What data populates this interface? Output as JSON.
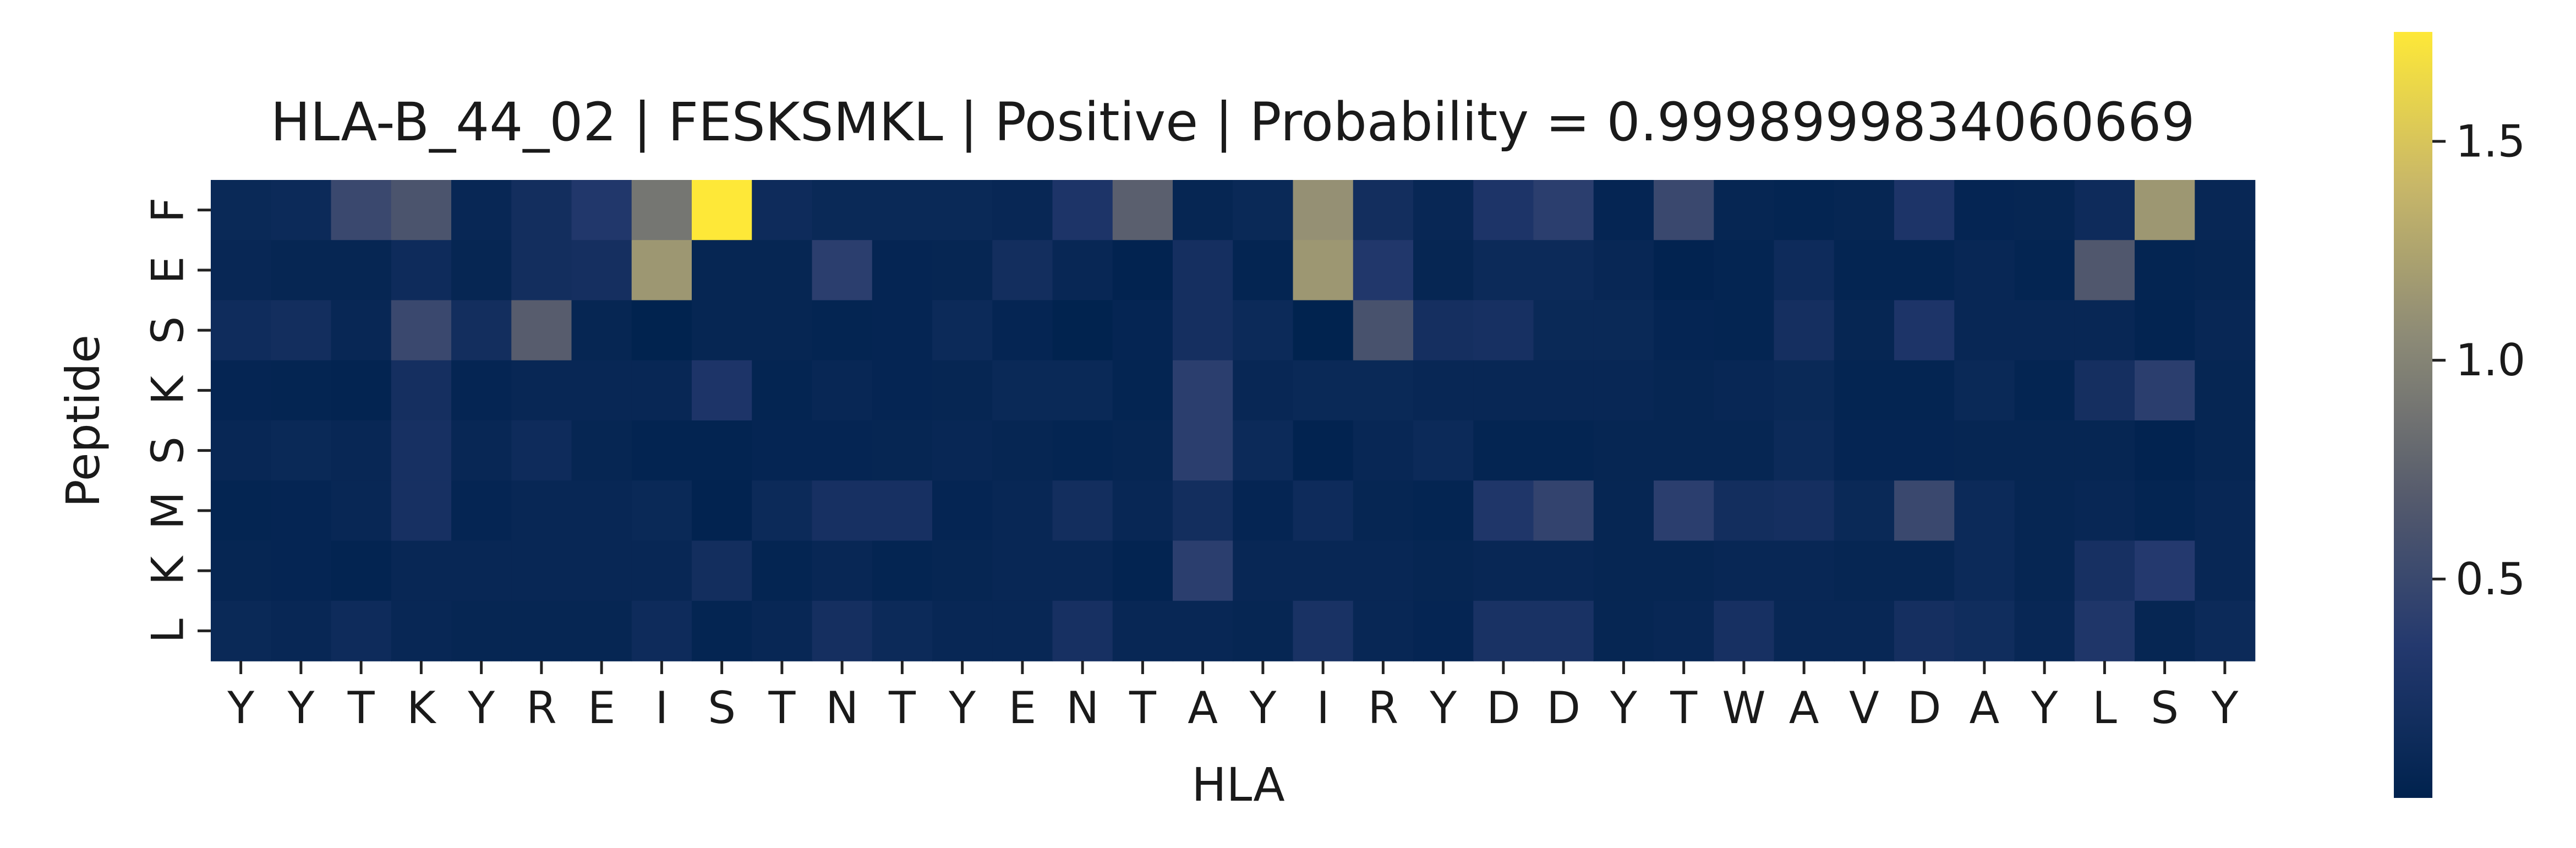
{
  "chart_data": {
    "type": "heatmap",
    "title": "HLA-B_44_02 | FESKSMKL | Positive | Probability = 0.9998999834060669",
    "xlabel": "HLA",
    "ylabel": "Peptide",
    "x_labels": [
      "Y",
      "Y",
      "T",
      "K",
      "Y",
      "R",
      "E",
      "I",
      "S",
      "T",
      "N",
      "T",
      "Y",
      "E",
      "N",
      "T",
      "A",
      "Y",
      "I",
      "R",
      "Y",
      "D",
      "D",
      "Y",
      "T",
      "W",
      "A",
      "V",
      "D",
      "A",
      "Y",
      "L",
      "S",
      "Y"
    ],
    "y_labels": [
      "F",
      "E",
      "S",
      "K",
      "S",
      "M",
      "K",
      "L"
    ],
    "colormap": "cividis",
    "value_range": [
      0.0,
      1.75
    ],
    "colorbar_ticks": [
      0.5,
      1.0,
      1.5
    ],
    "colorbar_tick_labels": [
      "0.5",
      "1.0",
      "1.5"
    ],
    "values": [
      [
        0.1,
        0.12,
        0.5,
        0.62,
        0.08,
        0.18,
        0.32,
        0.9,
        1.75,
        0.14,
        0.1,
        0.1,
        0.1,
        0.08,
        0.28,
        0.72,
        0.06,
        0.1,
        1.1,
        0.18,
        0.08,
        0.28,
        0.4,
        0.05,
        0.5,
        0.06,
        0.04,
        0.06,
        0.28,
        0.05,
        0.06,
        0.14,
        1.15,
        0.08
      ],
      [
        0.08,
        0.06,
        0.06,
        0.14,
        0.06,
        0.18,
        0.2,
        1.15,
        0.06,
        0.06,
        0.4,
        0.05,
        0.06,
        0.18,
        0.08,
        0.02,
        0.2,
        0.04,
        1.15,
        0.32,
        0.06,
        0.12,
        0.12,
        0.08,
        0.02,
        0.04,
        0.14,
        0.04,
        0.04,
        0.08,
        0.04,
        0.65,
        0.04,
        0.06
      ],
      [
        0.15,
        0.18,
        0.08,
        0.5,
        0.18,
        0.7,
        0.06,
        0.01,
        0.06,
        0.06,
        0.04,
        0.05,
        0.12,
        0.05,
        0.01,
        0.05,
        0.2,
        0.12,
        0.01,
        0.6,
        0.2,
        0.22,
        0.1,
        0.1,
        0.05,
        0.04,
        0.2,
        0.06,
        0.28,
        0.08,
        0.08,
        0.08,
        0.03,
        0.08
      ],
      [
        0.05,
        0.04,
        0.03,
        0.2,
        0.05,
        0.08,
        0.08,
        0.08,
        0.28,
        0.04,
        0.08,
        0.05,
        0.06,
        0.1,
        0.1,
        0.04,
        0.4,
        0.08,
        0.1,
        0.1,
        0.08,
        0.08,
        0.08,
        0.08,
        0.06,
        0.08,
        0.1,
        0.04,
        0.04,
        0.1,
        0.04,
        0.2,
        0.4,
        0.06
      ],
      [
        0.08,
        0.1,
        0.08,
        0.22,
        0.08,
        0.14,
        0.06,
        0.03,
        0.03,
        0.05,
        0.05,
        0.06,
        0.08,
        0.06,
        0.04,
        0.06,
        0.4,
        0.12,
        0.02,
        0.08,
        0.12,
        0.04,
        0.04,
        0.06,
        0.06,
        0.06,
        0.12,
        0.05,
        0.05,
        0.06,
        0.06,
        0.06,
        0.02,
        0.06
      ],
      [
        0.04,
        0.05,
        0.08,
        0.22,
        0.05,
        0.08,
        0.08,
        0.1,
        0.02,
        0.12,
        0.22,
        0.22,
        0.05,
        0.08,
        0.18,
        0.08,
        0.18,
        0.05,
        0.14,
        0.06,
        0.04,
        0.3,
        0.45,
        0.06,
        0.4,
        0.18,
        0.2,
        0.1,
        0.5,
        0.12,
        0.06,
        0.08,
        0.04,
        0.08
      ],
      [
        0.06,
        0.05,
        0.03,
        0.08,
        0.08,
        0.08,
        0.08,
        0.08,
        0.18,
        0.04,
        0.08,
        0.04,
        0.06,
        0.08,
        0.08,
        0.03,
        0.4,
        0.08,
        0.08,
        0.08,
        0.06,
        0.08,
        0.08,
        0.06,
        0.06,
        0.08,
        0.08,
        0.06,
        0.06,
        0.12,
        0.06,
        0.22,
        0.35,
        0.08
      ],
      [
        0.1,
        0.08,
        0.14,
        0.08,
        0.06,
        0.06,
        0.06,
        0.14,
        0.04,
        0.08,
        0.2,
        0.12,
        0.08,
        0.08,
        0.22,
        0.08,
        0.08,
        0.06,
        0.24,
        0.08,
        0.05,
        0.24,
        0.24,
        0.06,
        0.08,
        0.22,
        0.08,
        0.08,
        0.2,
        0.16,
        0.08,
        0.3,
        0.06,
        0.12
      ]
    ]
  }
}
